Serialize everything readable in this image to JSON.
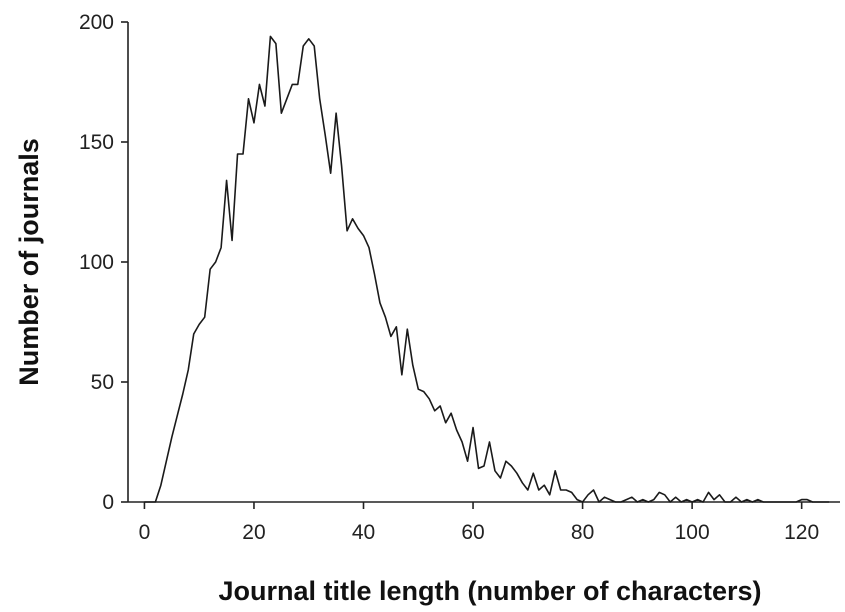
{
  "chart_data": {
    "type": "line",
    "title": "",
    "xlabel": "Journal title length (number of characters)",
    "ylabel": "Number of journals",
    "xlim": [
      -3,
      127
    ],
    "ylim": [
      0,
      200
    ],
    "x_ticks": [
      0,
      20,
      40,
      60,
      80,
      100,
      120
    ],
    "y_ticks": [
      0,
      50,
      100,
      150,
      200
    ],
    "grid": false,
    "legend": "none",
    "line_color": "#1a1a1a",
    "x": [
      0,
      1,
      2,
      3,
      4,
      5,
      6,
      7,
      8,
      9,
      10,
      11,
      12,
      13,
      14,
      15,
      16,
      17,
      18,
      19,
      20,
      21,
      22,
      23,
      24,
      25,
      26,
      27,
      28,
      29,
      30,
      31,
      32,
      33,
      34,
      35,
      36,
      37,
      38,
      39,
      40,
      41,
      42,
      43,
      44,
      45,
      46,
      47,
      48,
      49,
      50,
      51,
      52,
      53,
      54,
      55,
      56,
      57,
      58,
      59,
      60,
      61,
      62,
      63,
      64,
      65,
      66,
      67,
      68,
      69,
      70,
      71,
      72,
      73,
      74,
      75,
      76,
      77,
      78,
      79,
      80,
      81,
      82,
      83,
      84,
      85,
      86,
      87,
      88,
      89,
      90,
      91,
      92,
      93,
      94,
      95,
      96,
      97,
      98,
      99,
      100,
      101,
      102,
      103,
      104,
      105,
      106,
      107,
      108,
      109,
      110,
      111,
      112,
      113,
      114,
      115,
      116,
      117,
      118,
      119,
      120,
      121,
      122,
      123,
      124,
      125
    ],
    "y": [
      0,
      0,
      0,
      7,
      17,
      27,
      36,
      45,
      55,
      70,
      74,
      77,
      97,
      100,
      106,
      134,
      109,
      145,
      145,
      168,
      158,
      174,
      165,
      194,
      191,
      162,
      168,
      174,
      174,
      190,
      193,
      190,
      168,
      153,
      137,
      162,
      140,
      113,
      118,
      114,
      111,
      106,
      95,
      83,
      77,
      69,
      73,
      53,
      72,
      57,
      47,
      46,
      43,
      38,
      40,
      33,
      37,
      30,
      25,
      17,
      31,
      14,
      15,
      25,
      13,
      10,
      17,
      15,
      12,
      8,
      5,
      12,
      5,
      7,
      3,
      13,
      5,
      5,
      4,
      1,
      0,
      3,
      5,
      0,
      2,
      1,
      0,
      0,
      1,
      2,
      0,
      1,
      0,
      1,
      4,
      3,
      0,
      2,
      0,
      1,
      0,
      1,
      0,
      4,
      1,
      3,
      0,
      0,
      2,
      0,
      1,
      0,
      1,
      0,
      0,
      0,
      0,
      0,
      0,
      0,
      1,
      1,
      0,
      0,
      0,
      0
    ]
  }
}
